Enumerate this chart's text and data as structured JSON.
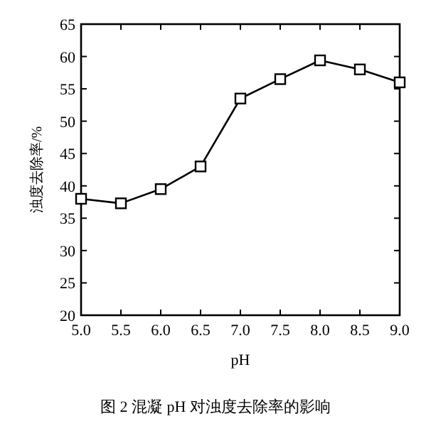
{
  "chart_data": {
    "type": "line",
    "xlabel": "pH",
    "ylabel": "浊度去除率/%",
    "x": [
      5.0,
      5.5,
      6.0,
      6.5,
      7.0,
      7.5,
      8.0,
      8.5,
      9.0
    ],
    "series": [
      {
        "color": "#000000",
        "values": [
          38.0,
          37.3,
          39.5,
          43.0,
          53.5,
          56.5,
          59.4,
          58.0,
          56.0
        ]
      }
    ],
    "xlim": [
      5.0,
      9.0
    ],
    "xticks": [
      {
        "value": 5.0,
        "label": "5.0"
      },
      {
        "value": 5.5,
        "label": "5.5"
      },
      {
        "value": 6.0,
        "label": "6.0"
      },
      {
        "value": 6.5,
        "label": "6.5"
      },
      {
        "value": 7.0,
        "label": "7.0"
      },
      {
        "value": 7.5,
        "label": "7.5"
      },
      {
        "value": 8.0,
        "label": "8.0"
      },
      {
        "value": 8.5,
        "label": "8.5"
      },
      {
        "value": 9.0,
        "label": "9.0"
      }
    ],
    "ylim": [
      20,
      65
    ],
    "yticks": [
      20,
      25,
      30,
      35,
      40,
      45,
      50,
      55,
      60,
      65
    ],
    "marker": "square",
    "line_style": "solid",
    "annotations": [
      "图 2  混凝 pH 对浊度去除率的影响"
    ]
  }
}
